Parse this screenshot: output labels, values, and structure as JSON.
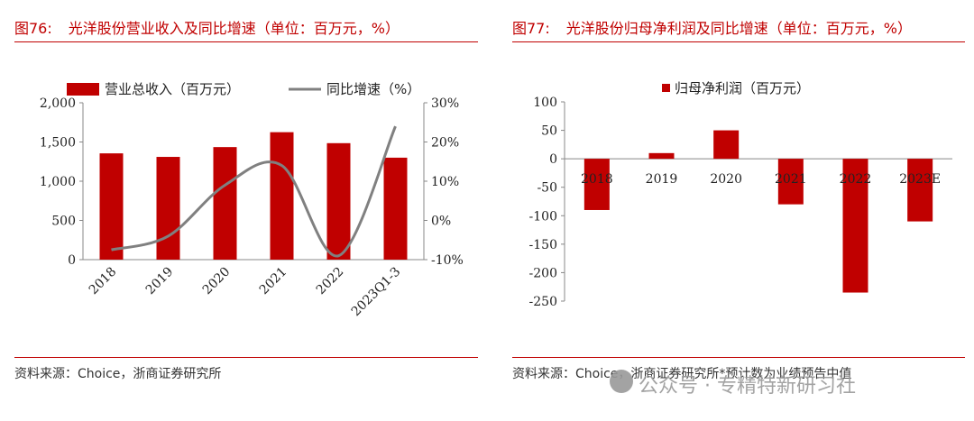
{
  "colors": {
    "accent": "#c00000",
    "bar": "#c00000",
    "line": "#808080"
  },
  "left_panel": {
    "fig_label": "图76:",
    "title": "光洋股份营业收入及同比增速（单位：百万元，%）",
    "source": "资料来源：Choice，浙商证券研究所"
  },
  "right_panel": {
    "fig_label": "图77:",
    "title": "光洋股份归母净利润及同比增速（单位：百万元，%）",
    "source": "资料来源：Choice，浙商证券研究所*预计数为业绩预告中值"
  },
  "watermark": {
    "icon": "wechat-icon",
    "text": "公众号 · 专精特新研习社"
  },
  "chart_data": [
    {
      "type": "bar+line",
      "categories": [
        "2018",
        "2019",
        "2020",
        "2021",
        "2022",
        "2023Q1-3"
      ],
      "series": [
        {
          "name": "营业总收入（百万元）",
          "axis": "left",
          "kind": "bar",
          "values": [
            1355,
            1310,
            1435,
            1625,
            1485,
            1300
          ]
        },
        {
          "name": "同比增速（%）",
          "axis": "right",
          "kind": "line",
          "values": [
            -7.5,
            -4,
            9,
            14,
            -9,
            24
          ]
        }
      ],
      "y_left": {
        "range": [
          0,
          2000
        ],
        "ticks": [
          0,
          500,
          1000,
          1500,
          2000
        ],
        "tick_labels": [
          "0",
          "500",
          "1,000",
          "1,500",
          "2,000"
        ]
      },
      "y_right": {
        "range": [
          -10,
          30
        ],
        "ticks": [
          -10,
          0,
          10,
          20,
          30
        ],
        "tick_labels": [
          "-10%",
          "0%",
          "10%",
          "20%",
          "30%"
        ]
      },
      "legend": "top"
    },
    {
      "type": "bar",
      "categories": [
        "2018",
        "2019",
        "2020",
        "2021",
        "2022",
        "2023E"
      ],
      "series": [
        {
          "name": "归母净利润（百万元）",
          "values": [
            -90,
            10,
            50,
            -80,
            -235,
            -110
          ]
        }
      ],
      "y": {
        "range": [
          -250,
          100
        ],
        "ticks": [
          100,
          50,
          0,
          -50,
          -100,
          -150,
          -200,
          -250
        ],
        "tick_labels": [
          "100",
          "50",
          "0",
          "-50",
          "-100",
          "-150",
          "-200",
          "-250"
        ]
      },
      "legend": "top"
    }
  ]
}
